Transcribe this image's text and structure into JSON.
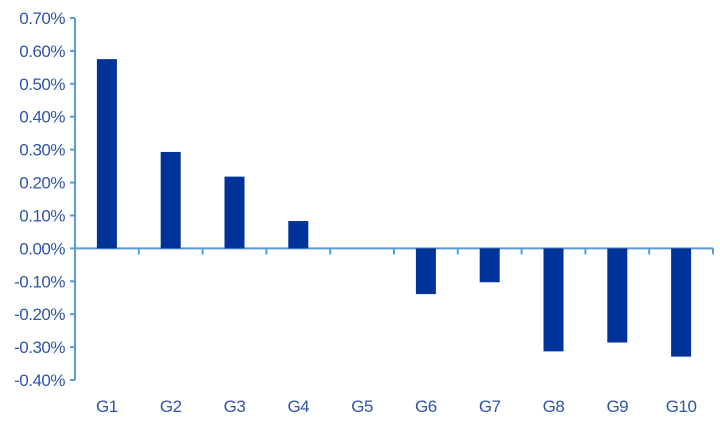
{
  "chart_data": {
    "type": "bar",
    "title": "",
    "xlabel": "",
    "ylabel": "",
    "categories": [
      "G1",
      "G2",
      "G3",
      "G4",
      "G5",
      "G6",
      "G7",
      "G8",
      "G9",
      "G10"
    ],
    "values": [
      0.575,
      0.293,
      0.218,
      0.083,
      0.0,
      -0.139,
      -0.103,
      -0.313,
      -0.286,
      -0.329
    ],
    "value_unit": "%",
    "ylim": [
      -0.4,
      0.7
    ],
    "yticks": [
      0.7,
      0.6,
      0.5,
      0.4,
      0.3,
      0.2,
      0.1,
      0.0,
      -0.1,
      -0.2,
      -0.3,
      -0.4
    ],
    "ytick_labels": [
      "0.70%",
      "0.60%",
      "0.50%",
      "0.40%",
      "0.30%",
      "0.20%",
      "0.10%",
      "0.00%",
      "-0.10%",
      "-0.20%",
      "-0.30%",
      "-0.40%"
    ],
    "grid": false,
    "legend": "none",
    "colors": {
      "bar": "#003399",
      "axis": "#5b9bd5",
      "text": "#2f54a8"
    }
  }
}
